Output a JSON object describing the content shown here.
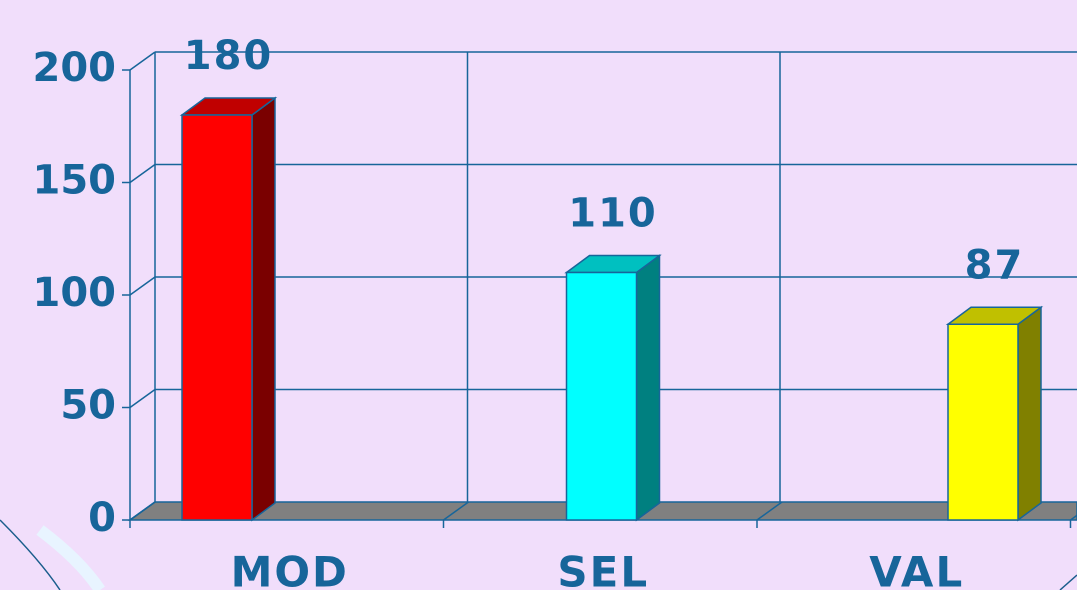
{
  "chart_data": {
    "type": "bar3d",
    "categories": [
      "MOD",
      "SEL",
      "VAL"
    ],
    "values": [
      180,
      110,
      87
    ],
    "colors": [
      "#ff0000",
      "#00ffff",
      "#ffff00"
    ],
    "side_colors": [
      "#7a0000",
      "#008080",
      "#808000"
    ],
    "top_colors": [
      "#c00000",
      "#00c0c0",
      "#c0c000"
    ],
    "ylim": [
      0,
      200
    ],
    "yticks": [
      0,
      50,
      100,
      150,
      200
    ],
    "grid": true
  }
}
